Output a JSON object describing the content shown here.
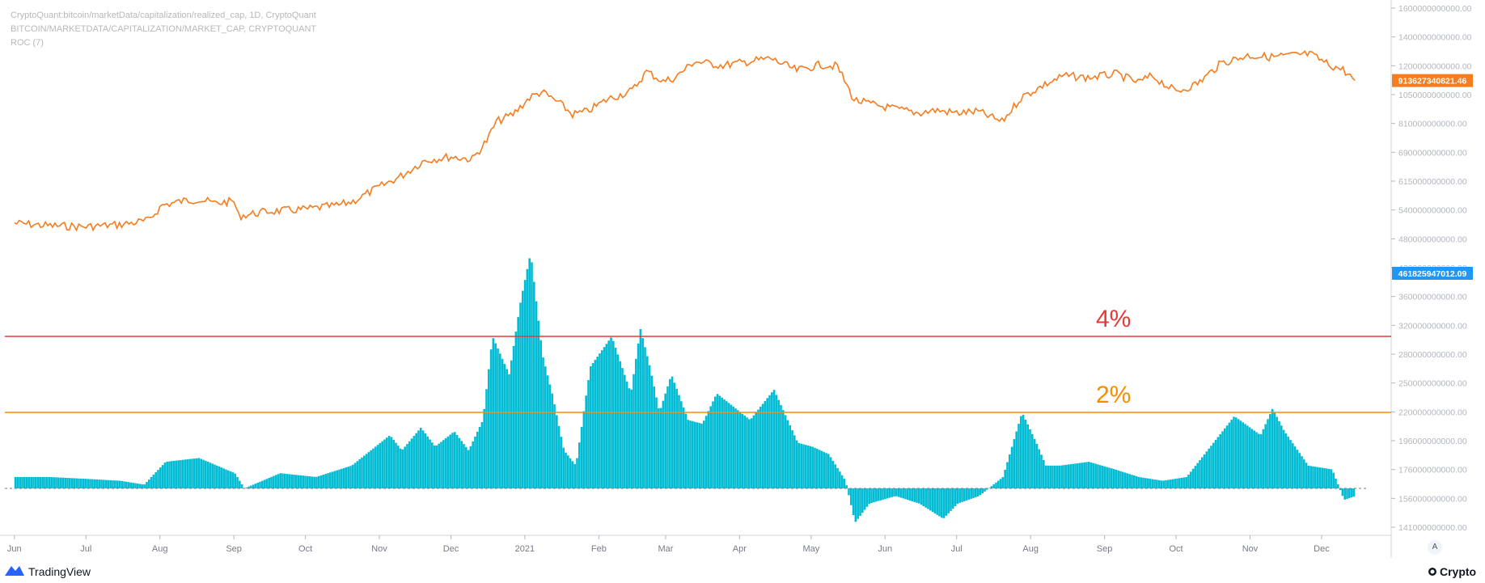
{
  "legend": {
    "line1": "CryptoQuant:bitcoin/marketData/capitalization/realized_cap, 1D, CryptoQuant",
    "line2": "BITCOIN/MARKETDATA/CAPITALIZATION/MARKET_CAP, CRYPTOQUANT",
    "line3": "ROC (7)"
  },
  "footer": {
    "left_brand": "TradingView",
    "right_brand": "Crypto",
    "axis_mode": "A"
  },
  "chart_data": {
    "type": "line",
    "x_ticks": [
      "Jun",
      "Jul",
      "Aug",
      "Sep",
      "Oct",
      "Nov",
      "Dec",
      "2021",
      "Feb",
      "Mar",
      "Apr",
      "May",
      "Jun",
      "Jul",
      "Aug",
      "Sep",
      "Oct",
      "Nov",
      "Dec"
    ],
    "y_ticks": [
      "1600000000000.00",
      "1400000000000.00",
      "1200000000000.00",
      "1050000000000.00",
      "810000000000.00",
      "690000000000.00",
      "615000000000.00",
      "540000000000.00",
      "480000000000.00",
      "420000000000.00",
      "360000000000.00",
      "320000000000.00",
      "280000000000.00",
      "250000000000.00",
      "220000000000.00",
      "196000000000.00",
      "176000000000.00",
      "156000000000.00",
      "141000000000.00"
    ],
    "series": [
      {
        "type": "line",
        "color": "#f57c1f",
        "last_value_label": "913627340821.46",
        "x": [
          "2020-06-01",
          "2020-06-15",
          "2020-07-01",
          "2020-07-15",
          "2020-07-27",
          "2020-08-02",
          "2020-08-10",
          "2020-08-17",
          "2020-08-24",
          "2020-09-01",
          "2020-09-03",
          "2020-09-15",
          "2020-10-01",
          "2020-10-15",
          "2020-10-21",
          "2020-11-01",
          "2020-11-10",
          "2020-11-20",
          "2020-12-01",
          "2020-12-10",
          "2020-12-16",
          "2020-12-20",
          "2020-12-27",
          "2021-01-03",
          "2021-01-08",
          "2021-01-15",
          "2021-01-21",
          "2021-01-27",
          "2021-02-05",
          "2021-02-15",
          "2021-02-21",
          "2021-02-28",
          "2021-03-05",
          "2021-03-13",
          "2021-03-25",
          "2021-04-05",
          "2021-04-14",
          "2021-04-25",
          "2021-05-05",
          "2021-05-12",
          "2021-05-19",
          "2021-05-25",
          "2021-06-05",
          "2021-06-15",
          "2021-06-22",
          "2021-07-01",
          "2021-07-10",
          "2021-07-20",
          "2021-07-28",
          "2021-08-07",
          "2021-08-15",
          "2021-08-25",
          "2021-09-06",
          "2021-09-15",
          "2021-09-21",
          "2021-10-01",
          "2021-10-10",
          "2021-10-20",
          "2021-10-31",
          "2021-11-10",
          "2021-11-18",
          "2021-11-26",
          "2021-12-04",
          "2021-12-10",
          "2021-12-15"
        ],
        "values": [
          175,
          170,
          168,
          172,
          180,
          215,
          225,
          230,
          220,
          225,
          190,
          200,
          205,
          215,
          225,
          265,
          300,
          360,
          375,
          365,
          450,
          560,
          610,
          740,
          790,
          700,
          610,
          630,
          730,
          800,
          1000,
          890,
          930,
          1120,
          1070,
          1120,
          1160,
          1010,
          1080,
          1060,
          720,
          690,
          650,
          620,
          640,
          620,
          630,
          560,
          740,
          860,
          950,
          930,
          970,
          880,
          950,
          790,
          870,
          1100,
          1200,
          1180,
          1200,
          1220,
          1080,
          1020,
          900
        ]
      },
      {
        "type": "line",
        "color": "#2196f3",
        "last_value_label": "461825947012.09"
      },
      {
        "type": "histogram",
        "name": "ROC (7)",
        "color": "#00bcd4",
        "unit": "%",
        "x": [
          "2020-06-01",
          "2020-06-15",
          "2020-07-01",
          "2020-07-15",
          "2020-07-25",
          "2020-08-03",
          "2020-08-17",
          "2020-09-01",
          "2020-09-05",
          "2020-09-20",
          "2020-10-05",
          "2020-10-20",
          "2020-10-28",
          "2020-11-05",
          "2020-11-10",
          "2020-11-18",
          "2020-11-24",
          "2020-12-02",
          "2020-12-08",
          "2020-12-14",
          "2020-12-18",
          "2020-12-25",
          "2020-12-30",
          "2021-01-03",
          "2021-01-08",
          "2021-01-12",
          "2021-01-17",
          "2021-01-22",
          "2021-01-28",
          "2021-02-06",
          "2021-02-14",
          "2021-02-18",
          "2021-02-22",
          "2021-02-26",
          "2021-03-03",
          "2021-03-10",
          "2021-03-16",
          "2021-03-22",
          "2021-04-05",
          "2021-04-15",
          "2021-04-25",
          "2021-05-01",
          "2021-05-08",
          "2021-05-15",
          "2021-05-19",
          "2021-05-25",
          "2021-06-05",
          "2021-06-15",
          "2021-06-25",
          "2021-07-01",
          "2021-07-10",
          "2021-07-20",
          "2021-07-28",
          "2021-08-03",
          "2021-08-07",
          "2021-08-13",
          "2021-08-25",
          "2021-09-05",
          "2021-09-15",
          "2021-09-25",
          "2021-10-05",
          "2021-10-15",
          "2021-10-25",
          "2021-11-05",
          "2021-11-10",
          "2021-11-15",
          "2021-11-25",
          "2021-12-05",
          "2021-12-10",
          "2021-12-15"
        ],
        "values": [
          0.3,
          0.3,
          0.25,
          0.2,
          0.1,
          0.7,
          0.8,
          0.4,
          0.0,
          0.4,
          0.3,
          0.6,
          1.0,
          1.4,
          1.0,
          1.6,
          1.1,
          1.5,
          1.0,
          1.8,
          4.0,
          3.0,
          5.0,
          6.2,
          3.5,
          2.5,
          1.0,
          0.6,
          3.2,
          4.0,
          2.5,
          4.2,
          3.2,
          2.0,
          3.0,
          1.8,
          1.7,
          2.5,
          1.8,
          2.6,
          1.2,
          1.1,
          0.9,
          0.2,
          -0.9,
          -0.4,
          -0.2,
          -0.4,
          -0.8,
          -0.4,
          -0.2,
          0.3,
          2.0,
          1.2,
          0.6,
          0.6,
          0.7,
          0.5,
          0.3,
          0.2,
          0.3,
          1.1,
          1.9,
          1.4,
          2.1,
          1.5,
          0.6,
          0.5,
          -0.3,
          -0.2
        ]
      }
    ],
    "thresholds": [
      {
        "label": "4%",
        "value": 4,
        "color": "#e53935"
      },
      {
        "label": "2%",
        "value": 2,
        "color": "#fb8c00"
      }
    ]
  }
}
